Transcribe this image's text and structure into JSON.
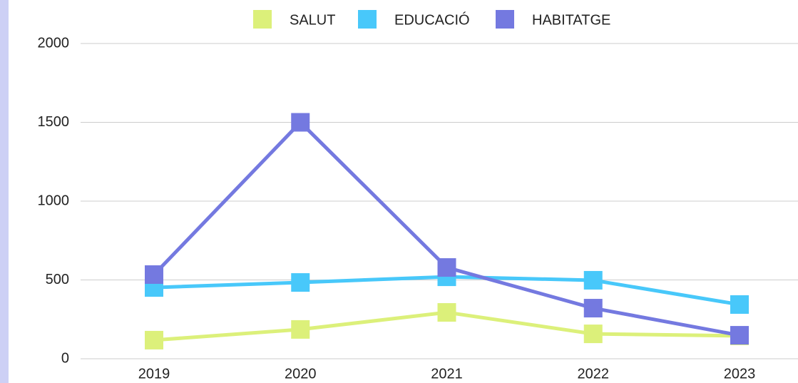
{
  "chart_data": {
    "type": "line",
    "categories": [
      "2019",
      "2020",
      "2021",
      "2022",
      "2023"
    ],
    "series": [
      {
        "name": "SALUT",
        "color": "#dcf07a",
        "values": [
          118,
          186,
          294,
          158,
          145
        ]
      },
      {
        "name": "EDUCACIÓ",
        "color": "#48c8fa",
        "values": [
          452,
          484,
          520,
          498,
          344
        ]
      },
      {
        "name": "HABITATGE",
        "color": "#7479e0",
        "values": [
          534,
          1500,
          579,
          321,
          149
        ]
      }
    ],
    "ylim": [
      0,
      2000
    ],
    "yticks": [
      0,
      500,
      1000,
      1500,
      2000
    ],
    "grid": true,
    "legend": "top"
  }
}
